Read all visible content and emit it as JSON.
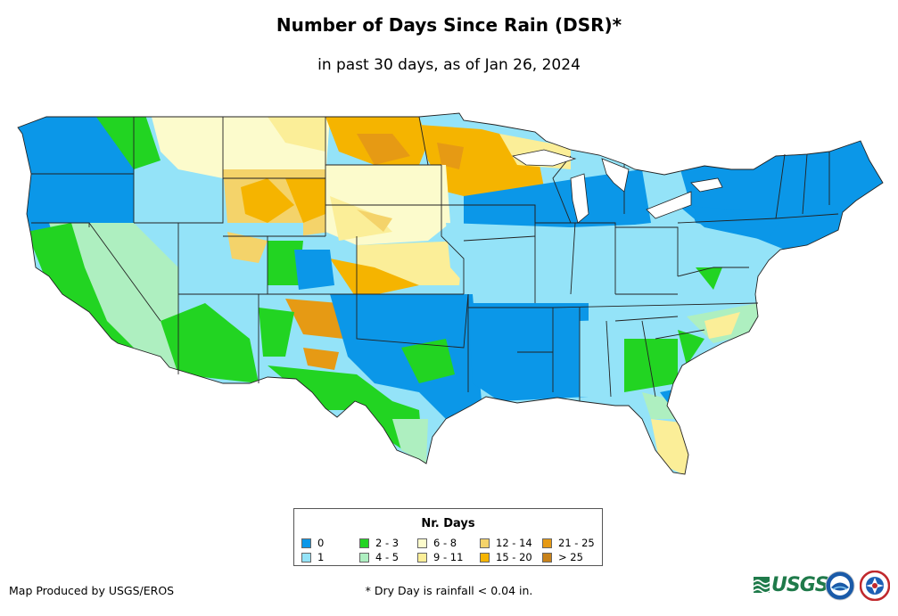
{
  "title": "Number of Days Since Rain (DSR)*",
  "subtitle": "in past 30 days, as of Jan 26, 2024",
  "legend": {
    "title": "Nr. Days",
    "items": [
      {
        "label": "0",
        "color": "#0b97e8"
      },
      {
        "label": "1",
        "color": "#94e3f8"
      },
      {
        "label": "2 - 3",
        "color": "#22d422"
      },
      {
        "label": "4 - 5",
        "color": "#aeefc0"
      },
      {
        "label": "6 - 8",
        "color": "#fcfbcc"
      },
      {
        "label": "9 - 11",
        "color": "#fbee98"
      },
      {
        "label": "12 - 14",
        "color": "#f4d36a"
      },
      {
        "label": "15 - 20",
        "color": "#f5b400"
      },
      {
        "label": "21 - 25",
        "color": "#e69a14"
      },
      {
        "label": "> 25",
        "color": "#c8821a"
      }
    ]
  },
  "credit": "Map Produced by USGS/EROS",
  "footnote": "* Dry Day is rainfall < 0.04 in.",
  "logos": {
    "usgs": "USGS",
    "noaa": "noaa-seal-icon",
    "nws": "nws-seal-icon"
  }
}
